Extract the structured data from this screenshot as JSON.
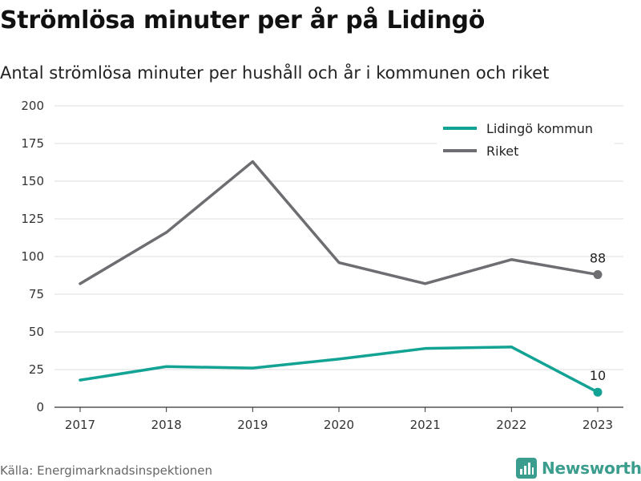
{
  "header": {
    "title": "Strömlösa minuter per år på Lidingö",
    "subtitle": "Antal strömlösa minuter per hushåll och år i kommunen och riket"
  },
  "footer": {
    "source": "Källa: Energimarknadsinspektionen",
    "brand": "Newsworthy"
  },
  "chart_data": {
    "type": "line",
    "x": [
      2017,
      2018,
      2019,
      2020,
      2021,
      2022,
      2023
    ],
    "series": [
      {
        "name": "Lidingö kommun",
        "color": "#12a394",
        "values": [
          18,
          27,
          26,
          32,
          39,
          40,
          10
        ],
        "end_label": "10"
      },
      {
        "name": "Riket",
        "color": "#6e6d72",
        "values": [
          82,
          116,
          163,
          96,
          82,
          98,
          88
        ],
        "end_label": "88"
      }
    ],
    "ylim": [
      0,
      200
    ],
    "yticks": [
      0,
      25,
      50,
      75,
      100,
      125,
      150,
      175,
      200
    ],
    "grid": true,
    "legend": "top-right"
  }
}
